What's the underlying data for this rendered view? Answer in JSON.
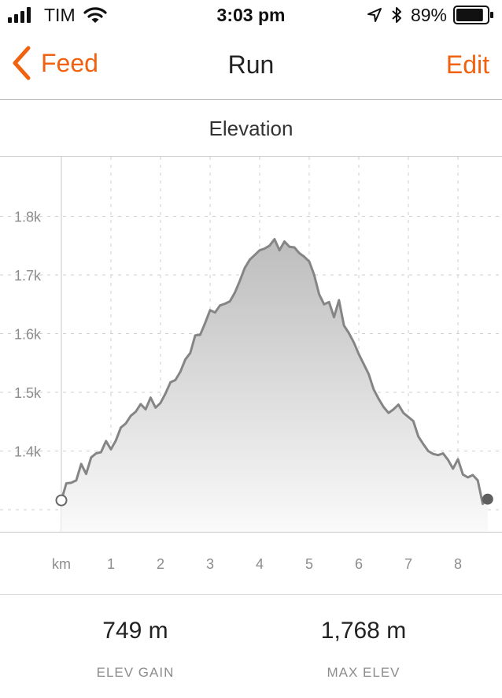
{
  "status_bar": {
    "carrier": "TIM",
    "time": "3:03 pm",
    "battery_percent": "89%",
    "battery_level": 0.89,
    "icons": [
      "signal-bars-icon",
      "wifi-icon",
      "location-arrow-icon",
      "bluetooth-icon",
      "battery-icon"
    ]
  },
  "nav": {
    "back_label": "Feed",
    "back_icon": "chevron-left-icon",
    "title": "Run",
    "edit_label": "Edit",
    "accent_color": "#f0620f"
  },
  "section": {
    "title": "Elevation"
  },
  "chart_data": {
    "type": "area",
    "title": "Elevation",
    "xlabel": "km",
    "ylabel": "",
    "x_ticks": [
      "1",
      "2",
      "3",
      "4",
      "5",
      "6",
      "7",
      "8"
    ],
    "y_ticks": [
      "1.4k",
      "1.5k",
      "1.6k",
      "1.7k",
      "1.8k"
    ],
    "xlim": [
      0,
      8.8
    ],
    "ylim": [
      1280,
      1900
    ],
    "grid": true,
    "line_color": "#858585",
    "x": [
      0,
      0.1,
      0.2,
      0.3,
      0.4,
      0.5,
      0.6,
      0.7,
      0.8,
      0.9,
      1.0,
      1.1,
      1.2,
      1.3,
      1.4,
      1.5,
      1.6,
      1.7,
      1.8,
      1.9,
      2.0,
      2.1,
      2.2,
      2.3,
      2.4,
      2.5,
      2.6,
      2.7,
      2.8,
      2.9,
      3.0,
      3.1,
      3.2,
      3.3,
      3.4,
      3.5,
      3.6,
      3.7,
      3.8,
      3.9,
      4.0,
      4.1,
      4.2,
      4.3,
      4.4,
      4.5,
      4.6,
      4.7,
      4.8,
      4.9,
      5.0,
      5.1,
      5.2,
      5.3,
      5.4,
      5.5,
      5.6,
      5.7,
      5.8,
      5.9,
      6.0,
      6.1,
      6.2,
      6.3,
      6.4,
      6.5,
      6.6,
      6.7,
      6.8,
      6.9,
      7.0,
      7.1,
      7.2,
      7.3,
      7.4,
      7.5,
      7.6,
      7.7,
      7.8,
      7.9,
      8.0,
      8.1,
      8.2,
      8.3,
      8.4,
      8.5,
      8.6
    ],
    "values": [
      1316,
      1345,
      1346,
      1350,
      1378,
      1361,
      1389,
      1396,
      1398,
      1417,
      1403,
      1418,
      1440,
      1447,
      1460,
      1467,
      1480,
      1471,
      1491,
      1474,
      1482,
      1498,
      1517,
      1521,
      1535,
      1556,
      1567,
      1597,
      1598,
      1618,
      1640,
      1636,
      1648,
      1651,
      1655,
      1670,
      1690,
      1712,
      1726,
      1734,
      1742,
      1745,
      1750,
      1761,
      1742,
      1757,
      1748,
      1747,
      1737,
      1731,
      1723,
      1700,
      1667,
      1650,
      1654,
      1628,
      1657,
      1614,
      1601,
      1585,
      1565,
      1548,
      1531,
      1505,
      1489,
      1475,
      1465,
      1471,
      1479,
      1465,
      1458,
      1451,
      1425,
      1412,
      1400,
      1395,
      1393,
      1396,
      1385,
      1370,
      1386,
      1360,
      1355,
      1359,
      1350,
      1310,
      1318
    ],
    "start_marker": "hollow-circle",
    "end_marker": "filled-circle"
  },
  "stats": [
    {
      "value": "749 m",
      "label": "ELEV GAIN"
    },
    {
      "value": "1,768 m",
      "label": "MAX ELEV"
    }
  ]
}
